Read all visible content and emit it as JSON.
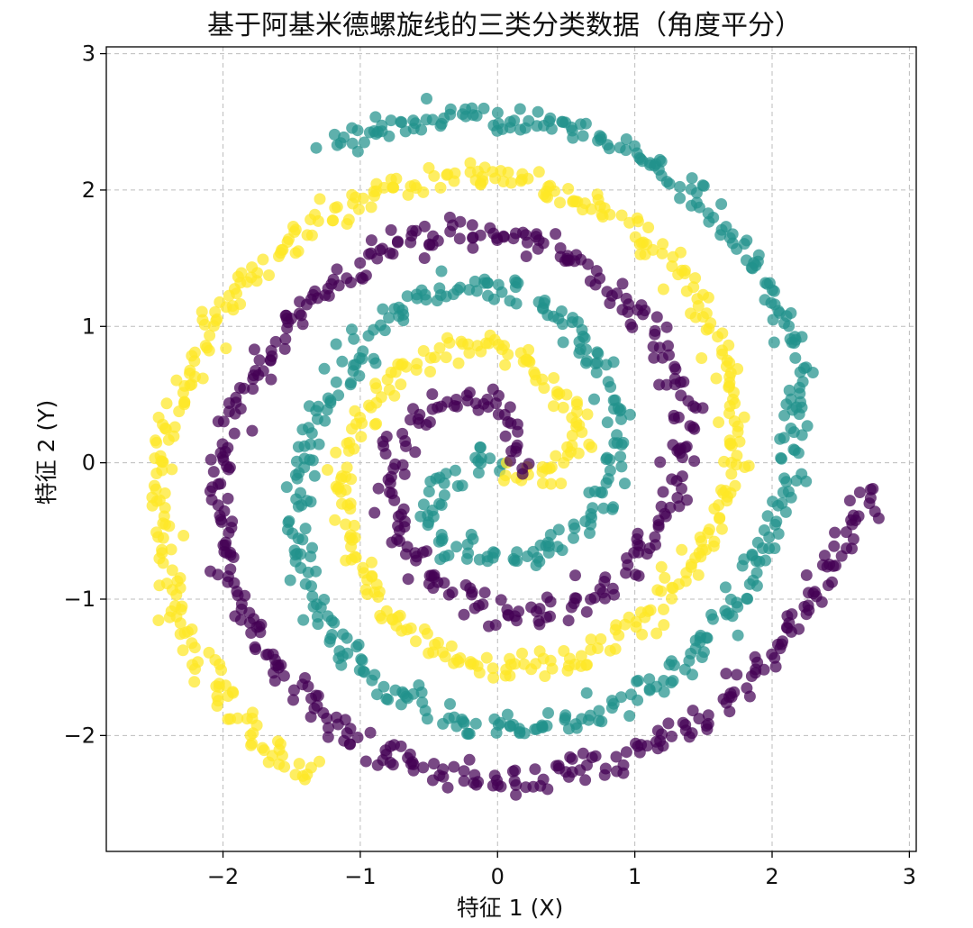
{
  "chart_data": {
    "type": "scatter",
    "title": "基于阿基米德螺旋线的三类分类数据（角度平分）",
    "xlabel": "特征 1 (X)",
    "ylabel": "特征 2 (Y)",
    "xlim": [
      -2.85,
      3.05
    ],
    "ylim": [
      -2.85,
      3.05
    ],
    "xticks": [
      -2,
      -1,
      0,
      1,
      2,
      3
    ],
    "yticks": [
      -2,
      -1,
      0,
      1,
      2,
      3
    ],
    "xtick_labels": [
      "−2",
      "−1",
      "0",
      "1",
      "2",
      "3"
    ],
    "ytick_labels": [
      "−2",
      "−1",
      "0",
      "1",
      "2",
      "3"
    ],
    "grid": true,
    "colormap": "viridis",
    "series": [
      {
        "color": "#440154",
        "points": [
          [
            0.16,
            -0.02
          ],
          [
            0.1,
            0.32
          ],
          [
            -0.05,
            0.48
          ],
          [
            -0.34,
            0.46
          ],
          [
            -0.58,
            0.32
          ],
          [
            -0.76,
            0.05
          ],
          [
            -0.8,
            -0.25
          ],
          [
            -0.7,
            -0.6
          ],
          [
            -0.45,
            -0.88
          ],
          [
            -0.1,
            -1.08
          ],
          [
            0.3,
            -1.1
          ],
          [
            0.7,
            -0.98
          ],
          [
            1.0,
            -0.72
          ],
          [
            1.22,
            -0.4
          ],
          [
            1.35,
            0.0
          ],
          [
            1.36,
            0.42
          ],
          [
            1.22,
            0.82
          ],
          [
            0.98,
            1.18
          ],
          [
            0.6,
            1.48
          ],
          [
            0.18,
            1.66
          ],
          [
            -0.26,
            1.72
          ],
          [
            -0.68,
            1.62
          ],
          [
            -1.06,
            1.42
          ],
          [
            -1.42,
            1.12
          ],
          [
            -1.72,
            0.72
          ],
          [
            -1.92,
            0.32
          ],
          [
            -2.02,
            -0.08
          ],
          [
            -2.0,
            -0.5
          ],
          [
            -1.92,
            -0.92
          ],
          [
            -1.74,
            -1.32
          ],
          [
            -1.48,
            -1.66
          ],
          [
            -1.14,
            -1.96
          ],
          [
            -0.74,
            -2.18
          ],
          [
            -0.3,
            -2.3
          ],
          [
            0.14,
            -2.34
          ],
          [
            0.6,
            -2.26
          ],
          [
            1.02,
            -2.12
          ],
          [
            1.42,
            -1.92
          ],
          [
            1.78,
            -1.62
          ],
          [
            2.1,
            -1.28
          ],
          [
            2.38,
            -0.88
          ],
          [
            2.58,
            -0.48
          ],
          [
            2.72,
            -0.16
          ]
        ]
      },
      {
        "color": "#21918c",
        "points": [
          [
            0.02,
            0.06
          ],
          [
            -0.2,
            -0.02
          ],
          [
            -0.42,
            -0.18
          ],
          [
            -0.52,
            -0.42
          ],
          [
            -0.38,
            -0.62
          ],
          [
            -0.08,
            -0.68
          ],
          [
            0.22,
            -0.68
          ],
          [
            0.5,
            -0.56
          ],
          [
            0.72,
            -0.34
          ],
          [
            0.86,
            -0.02
          ],
          [
            0.88,
            0.34
          ],
          [
            0.76,
            0.7
          ],
          [
            0.5,
            1.04
          ],
          [
            0.16,
            1.26
          ],
          [
            -0.2,
            1.32
          ],
          [
            -0.56,
            1.2
          ],
          [
            -0.9,
            0.94
          ],
          [
            -1.18,
            0.6
          ],
          [
            -1.38,
            0.2
          ],
          [
            -1.48,
            -0.22
          ],
          [
            -1.46,
            -0.66
          ],
          [
            -1.32,
            -1.08
          ],
          [
            -1.06,
            -1.46
          ],
          [
            -0.72,
            -1.74
          ],
          [
            -0.3,
            -1.9
          ],
          [
            0.14,
            -1.96
          ],
          [
            0.6,
            -1.9
          ],
          [
            1.02,
            -1.72
          ],
          [
            1.4,
            -1.44
          ],
          [
            1.7,
            -1.1
          ],
          [
            1.92,
            -0.7
          ],
          [
            2.08,
            -0.26
          ],
          [
            2.18,
            0.18
          ],
          [
            2.2,
            0.64
          ],
          [
            2.06,
            1.08
          ],
          [
            1.82,
            1.52
          ],
          [
            1.5,
            1.88
          ],
          [
            1.1,
            2.2
          ],
          [
            0.64,
            2.42
          ],
          [
            0.16,
            2.52
          ],
          [
            -0.34,
            2.54
          ],
          [
            -0.8,
            2.46
          ],
          [
            -1.24,
            2.3
          ]
        ]
      },
      {
        "color": "#fde725",
        "points": [
          [
            0.06,
            -0.08
          ],
          [
            0.3,
            -0.12
          ],
          [
            0.52,
            -0.02
          ],
          [
            0.62,
            0.18
          ],
          [
            0.54,
            0.42
          ],
          [
            0.36,
            0.62
          ],
          [
            0.1,
            0.82
          ],
          [
            -0.24,
            0.86
          ],
          [
            -0.58,
            0.76
          ],
          [
            -0.86,
            0.52
          ],
          [
            -1.04,
            0.18
          ],
          [
            -1.14,
            -0.22
          ],
          [
            -1.06,
            -0.66
          ],
          [
            -0.86,
            -1.02
          ],
          [
            -0.52,
            -1.34
          ],
          [
            -0.12,
            -1.48
          ],
          [
            0.32,
            -1.5
          ],
          [
            0.72,
            -1.38
          ],
          [
            1.08,
            -1.14
          ],
          [
            1.38,
            -0.82
          ],
          [
            1.6,
            -0.42
          ],
          [
            1.72,
            0.02
          ],
          [
            1.72,
            0.48
          ],
          [
            1.6,
            0.94
          ],
          [
            1.36,
            1.36
          ],
          [
            1.02,
            1.72
          ],
          [
            0.6,
            1.94
          ],
          [
            0.12,
            2.08
          ],
          [
            -0.38,
            2.1
          ],
          [
            -0.86,
            2.0
          ],
          [
            -1.3,
            1.78
          ],
          [
            -1.7,
            1.48
          ],
          [
            -2.02,
            1.1
          ],
          [
            -2.26,
            0.66
          ],
          [
            -2.42,
            0.2
          ],
          [
            -2.48,
            -0.28
          ],
          [
            -2.42,
            -0.76
          ],
          [
            -2.3,
            -1.24
          ],
          [
            -2.08,
            -1.64
          ],
          [
            -1.8,
            -2.0
          ],
          [
            -1.52,
            -2.2
          ],
          [
            -1.3,
            -2.28
          ]
        ]
      }
    ]
  }
}
